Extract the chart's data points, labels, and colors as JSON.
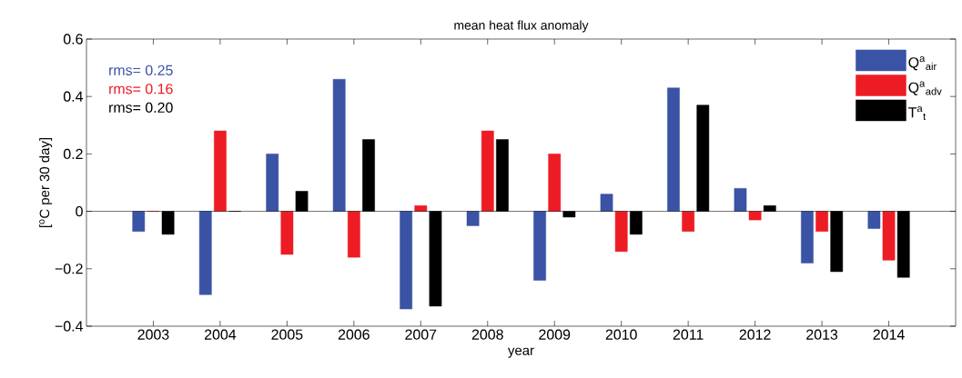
{
  "chart_data": {
    "type": "bar",
    "title": "mean heat flux anomaly",
    "xlabel": "year",
    "ylabel": "[$^{o}$C per 30 day]",
    "categories": [
      "2003",
      "2004",
      "2005",
      "2006",
      "2007",
      "2008",
      "2009",
      "2010",
      "2011",
      "2012",
      "2013",
      "2014"
    ],
    "series": [
      {
        "name": "Q$^{a}$$_{air}$",
        "color": "#3a53a4",
        "values": [
          -0.07,
          -0.29,
          0.2,
          0.46,
          -0.34,
          -0.05,
          -0.24,
          0.06,
          0.43,
          0.08,
          -0.18,
          -0.06
        ]
      },
      {
        "name": "Q$^{a}$$_{adv}$",
        "color": "#ed1c24",
        "values": [
          0.0,
          0.28,
          -0.15,
          -0.16,
          0.02,
          0.28,
          0.2,
          -0.14,
          -0.07,
          -0.03,
          -0.07,
          -0.17
        ]
      },
      {
        "name": "T$^{a}$$_{t}$",
        "color": "#000000",
        "values": [
          -0.08,
          0.0,
          0.07,
          0.25,
          -0.33,
          0.25,
          -0.02,
          -0.08,
          0.37,
          0.02,
          -0.21,
          -0.23
        ]
      }
    ],
    "ylim": [
      -0.4,
      0.6
    ],
    "yticks": [
      {
        "value": -0.4,
        "label": "−0.4"
      },
      {
        "value": -0.2,
        "label": "−0.2"
      },
      0,
      0.2,
      0.4,
      0.6
    ],
    "annotations": [
      "rms= 0.25",
      "rms= 0.16",
      "rms= 0.20"
    ],
    "legend": "top right"
  }
}
